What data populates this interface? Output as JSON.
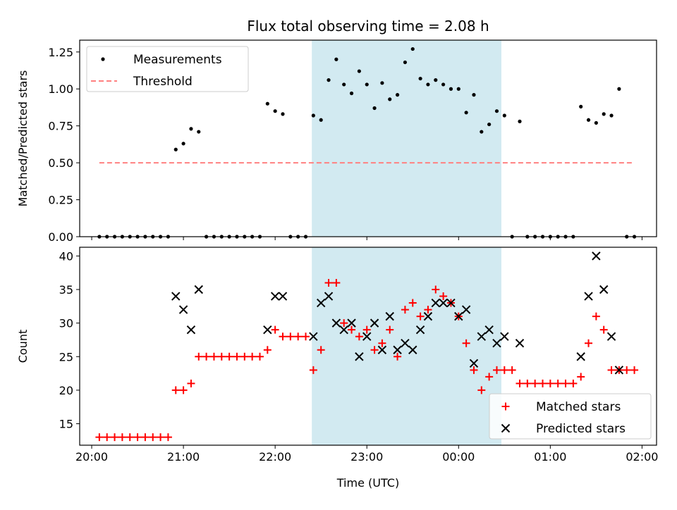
{
  "chart_data": [
    {
      "type": "scatter",
      "title": "Flux total observing time = 2.08 h",
      "ylabel": "Matched/Predicted stars",
      "xlabel": "",
      "x_unit": "time (UTC)",
      "xlim": [
        "20:00",
        "02:00"
      ],
      "ylim": [
        0,
        1.33
      ],
      "x_ticks": [
        "20:00",
        "21:00",
        "22:00",
        "23:00",
        "00:00",
        "01:00",
        "02:00"
      ],
      "y_ticks": [
        "0.00",
        "0.25",
        "0.50",
        "0.75",
        "1.00",
        "1.25"
      ],
      "x_tick_labels_visible": false,
      "shaded_span": {
        "from": "22:24",
        "to": "00:28",
        "color": "#add8e6"
      },
      "legend": {
        "placement": "upper left",
        "entries": [
          "Measurements",
          "Threshold"
        ]
      },
      "series": [
        {
          "name": "Measurements",
          "marker": "dot",
          "color": "#000000",
          "points": [
            [
              "20:05",
              0
            ],
            [
              "20:10",
              0
            ],
            [
              "20:15",
              0
            ],
            [
              "20:20",
              0
            ],
            [
              "20:25",
              0
            ],
            [
              "20:30",
              0
            ],
            [
              "20:35",
              0
            ],
            [
              "20:40",
              0
            ],
            [
              "20:45",
              0
            ],
            [
              "20:50",
              0
            ],
            [
              "20:55",
              0.59
            ],
            [
              "21:00",
              0.63
            ],
            [
              "21:05",
              0.73
            ],
            [
              "21:10",
              0.71
            ],
            [
              "21:15",
              0
            ],
            [
              "21:20",
              0
            ],
            [
              "21:25",
              0
            ],
            [
              "21:30",
              0
            ],
            [
              "21:35",
              0
            ],
            [
              "21:40",
              0
            ],
            [
              "21:45",
              0
            ],
            [
              "21:50",
              0
            ],
            [
              "21:55",
              0.9
            ],
            [
              "22:00",
              0.85
            ],
            [
              "22:05",
              0.83
            ],
            [
              "22:10",
              0
            ],
            [
              "22:15",
              0
            ],
            [
              "22:20",
              0
            ],
            [
              "22:25",
              0.82
            ],
            [
              "22:30",
              0.79
            ],
            [
              "22:35",
              1.06
            ],
            [
              "22:40",
              1.2
            ],
            [
              "22:45",
              1.03
            ],
            [
              "22:50",
              0.97
            ],
            [
              "22:55",
              1.12
            ],
            [
              "23:00",
              1.03
            ],
            [
              "23:05",
              0.87
            ],
            [
              "23:10",
              1.04
            ],
            [
              "23:15",
              0.93
            ],
            [
              "23:20",
              0.96
            ],
            [
              "23:25",
              1.18
            ],
            [
              "23:30",
              1.27
            ],
            [
              "23:35",
              1.07
            ],
            [
              "23:40",
              1.03
            ],
            [
              "23:45",
              1.06
            ],
            [
              "23:50",
              1.03
            ],
            [
              "23:55",
              1.0
            ],
            [
              "00:00",
              1.0
            ],
            [
              "00:05",
              0.84
            ],
            [
              "00:10",
              0.96
            ],
            [
              "00:15",
              0.71
            ],
            [
              "00:20",
              0.76
            ],
            [
              "00:25",
              0.85
            ],
            [
              "00:30",
              0.82
            ],
            [
              "00:35",
              0
            ],
            [
              "00:40",
              0.78
            ],
            [
              "00:45",
              0
            ],
            [
              "00:50",
              0
            ],
            [
              "00:55",
              0
            ],
            [
              "01:00",
              0
            ],
            [
              "01:05",
              0
            ],
            [
              "01:10",
              0
            ],
            [
              "01:15",
              0
            ],
            [
              "01:20",
              0.88
            ],
            [
              "01:25",
              0.79
            ],
            [
              "01:30",
              0.77
            ],
            [
              "01:35",
              0.83
            ],
            [
              "01:40",
              0.82
            ],
            [
              "01:45",
              1.0
            ],
            [
              "01:50",
              0
            ],
            [
              "01:55",
              0
            ]
          ]
        },
        {
          "name": "Threshold",
          "style": "dashed",
          "color": "#ff8080",
          "points": [
            [
              "20:05",
              0.5
            ],
            [
              "01:55",
              0.5
            ]
          ]
        }
      ]
    },
    {
      "type": "scatter",
      "title": "",
      "ylabel": "Count",
      "xlabel": "Time (UTC)",
      "xlim": [
        "20:00",
        "02:00"
      ],
      "ylim": [
        11.8,
        41.3
      ],
      "x_ticks": [
        "20:00",
        "21:00",
        "22:00",
        "23:00",
        "00:00",
        "01:00",
        "02:00"
      ],
      "y_ticks": [
        "15",
        "20",
        "25",
        "30",
        "35",
        "40"
      ],
      "shaded_span": {
        "from": "22:24",
        "to": "00:28",
        "color": "#add8e6"
      },
      "legend": {
        "placement": "lower right",
        "entries": [
          "Matched stars",
          "Predicted stars"
        ]
      },
      "series": [
        {
          "name": "Matched stars",
          "marker": "plus",
          "color": "#ff0000",
          "points": [
            [
              "20:05",
              13
            ],
            [
              "20:10",
              13
            ],
            [
              "20:15",
              13
            ],
            [
              "20:20",
              13
            ],
            [
              "20:25",
              13
            ],
            [
              "20:30",
              13
            ],
            [
              "20:35",
              13
            ],
            [
              "20:40",
              13
            ],
            [
              "20:45",
              13
            ],
            [
              "20:50",
              13
            ],
            [
              "20:55",
              20
            ],
            [
              "21:00",
              20
            ],
            [
              "21:05",
              21
            ],
            [
              "21:10",
              25
            ],
            [
              "21:15",
              25
            ],
            [
              "21:20",
              25
            ],
            [
              "21:25",
              25
            ],
            [
              "21:30",
              25
            ],
            [
              "21:35",
              25
            ],
            [
              "21:40",
              25
            ],
            [
              "21:45",
              25
            ],
            [
              "21:50",
              25
            ],
            [
              "21:55",
              26
            ],
            [
              "22:00",
              29
            ],
            [
              "22:05",
              28
            ],
            [
              "22:10",
              28
            ],
            [
              "22:15",
              28
            ],
            [
              "22:20",
              28
            ],
            [
              "22:25",
              23
            ],
            [
              "22:30",
              26
            ],
            [
              "22:35",
              36
            ],
            [
              "22:40",
              36
            ],
            [
              "22:45",
              30
            ],
            [
              "22:50",
              29
            ],
            [
              "22:55",
              28
            ],
            [
              "23:00",
              29
            ],
            [
              "23:05",
              26
            ],
            [
              "23:10",
              27
            ],
            [
              "23:15",
              29
            ],
            [
              "23:20",
              25
            ],
            [
              "23:25",
              32
            ],
            [
              "23:30",
              33
            ],
            [
              "23:35",
              31
            ],
            [
              "23:40",
              32
            ],
            [
              "23:45",
              35
            ],
            [
              "23:50",
              34
            ],
            [
              "23:55",
              33
            ],
            [
              "00:00",
              31
            ],
            [
              "00:05",
              27
            ],
            [
              "00:10",
              23
            ],
            [
              "00:15",
              20
            ],
            [
              "00:20",
              22
            ],
            [
              "00:25",
              23
            ],
            [
              "00:30",
              23
            ],
            [
              "00:35",
              23
            ],
            [
              "00:40",
              21
            ],
            [
              "00:45",
              21
            ],
            [
              "00:50",
              21
            ],
            [
              "00:55",
              21
            ],
            [
              "01:00",
              21
            ],
            [
              "01:05",
              21
            ],
            [
              "01:10",
              21
            ],
            [
              "01:15",
              21
            ],
            [
              "01:20",
              22
            ],
            [
              "01:25",
              27
            ],
            [
              "01:30",
              31
            ],
            [
              "01:35",
              29
            ],
            [
              "01:40",
              23
            ],
            [
              "01:45",
              23
            ],
            [
              "01:50",
              23
            ],
            [
              "01:55",
              23
            ]
          ]
        },
        {
          "name": "Predicted stars",
          "marker": "x",
          "color": "#000000",
          "points": [
            [
              "20:55",
              34
            ],
            [
              "21:00",
              32
            ],
            [
              "21:05",
              29
            ],
            [
              "21:10",
              35
            ],
            [
              "21:55",
              29
            ],
            [
              "22:00",
              34
            ],
            [
              "22:05",
              34
            ],
            [
              "22:25",
              28
            ],
            [
              "22:30",
              33
            ],
            [
              "22:35",
              34
            ],
            [
              "22:40",
              30
            ],
            [
              "22:45",
              29
            ],
            [
              "22:50",
              30
            ],
            [
              "22:55",
              25
            ],
            [
              "23:00",
              28
            ],
            [
              "23:05",
              30
            ],
            [
              "23:10",
              26
            ],
            [
              "23:15",
              31
            ],
            [
              "23:20",
              26
            ],
            [
              "23:25",
              27
            ],
            [
              "23:30",
              26
            ],
            [
              "23:35",
              29
            ],
            [
              "23:40",
              31
            ],
            [
              "23:45",
              33
            ],
            [
              "23:50",
              33
            ],
            [
              "23:55",
              33
            ],
            [
              "00:00",
              31
            ],
            [
              "00:05",
              32
            ],
            [
              "00:10",
              24
            ],
            [
              "00:15",
              28
            ],
            [
              "00:20",
              29
            ],
            [
              "00:25",
              27
            ],
            [
              "00:30",
              28
            ],
            [
              "00:40",
              27
            ],
            [
              "01:20",
              25
            ],
            [
              "01:25",
              34
            ],
            [
              "01:30",
              40
            ],
            [
              "01:35",
              35
            ],
            [
              "01:40",
              28
            ],
            [
              "01:45",
              23
            ]
          ]
        }
      ]
    }
  ]
}
